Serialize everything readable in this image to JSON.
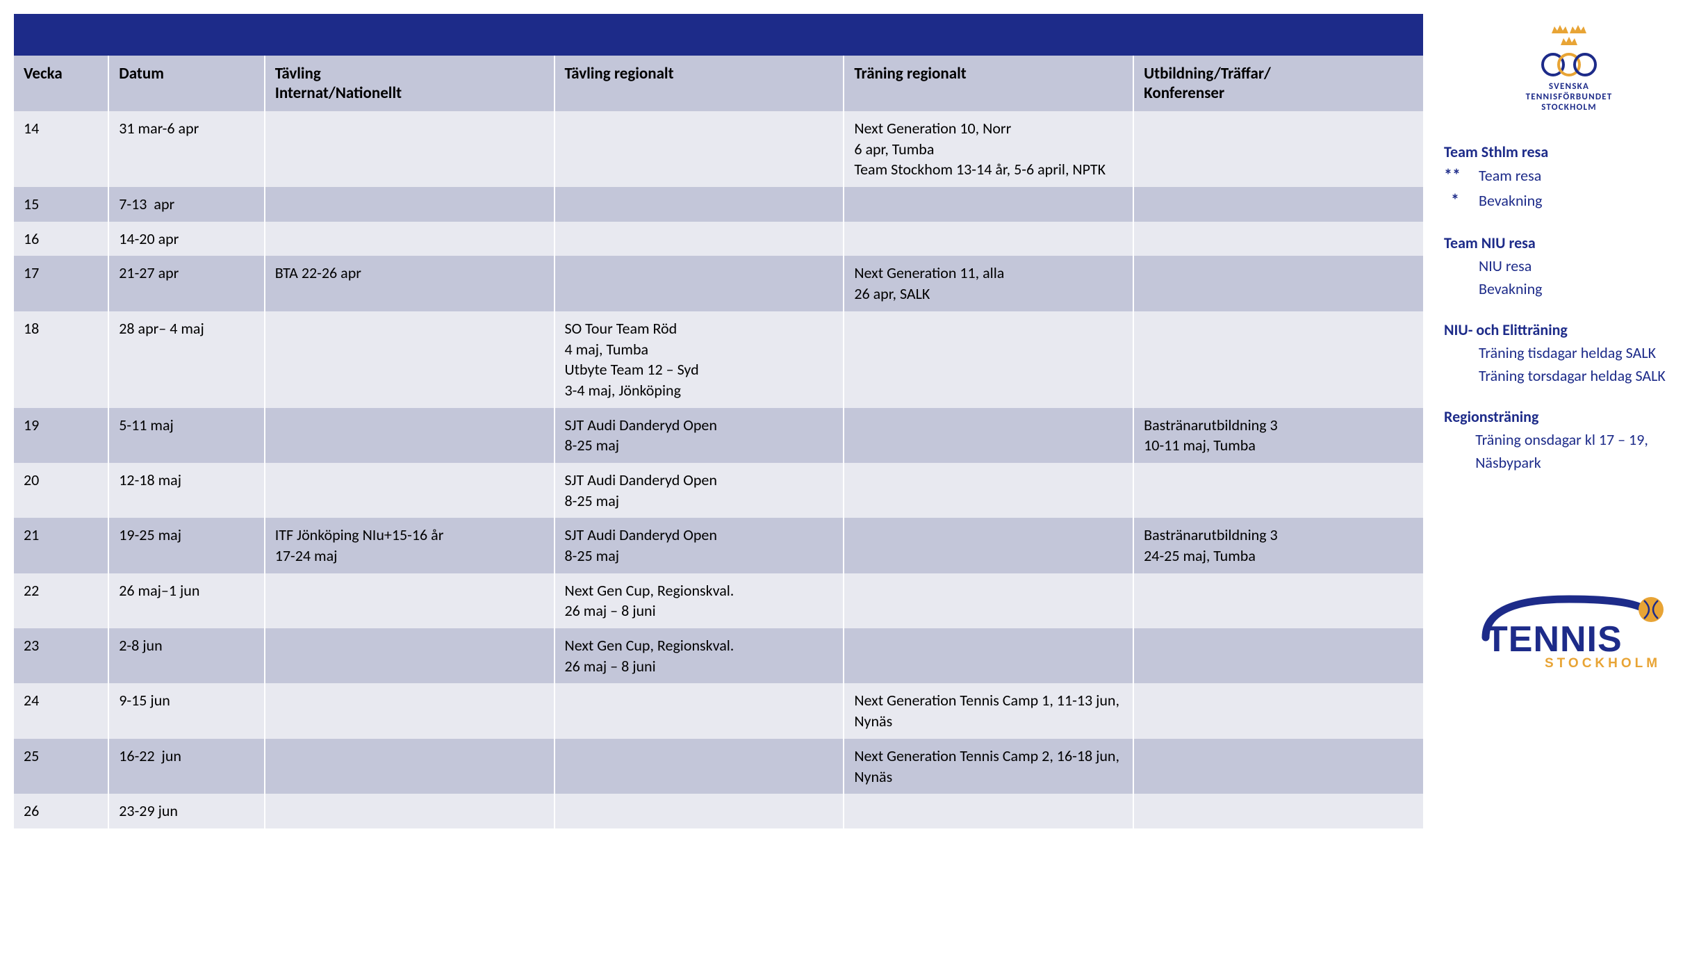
{
  "table": {
    "columns": [
      "Vecka",
      "Datum",
      "Tävling\nInternat/Nationellt",
      "Tävling regionalt",
      "Träning regionalt",
      "Utbildning/Träffar/\nKonferenser"
    ],
    "column_widths": [
      "85px",
      "140px",
      "260px",
      "260px",
      "260px",
      "260px"
    ],
    "header_bg": "#c3c6d9",
    "row_odd_bg": "#e8e9f0",
    "row_even_bg": "#c3c6d9",
    "header_bar_bg": "#1d2b89",
    "rows": [
      {
        "vecka": "14",
        "datum": "31 mar-6 apr",
        "intnat": "",
        "regional": "",
        "training": "Next Generation 10, Norr\n6 apr, Tumba\nTeam Stockhom 13-14 år, 5-6 april, NPTK",
        "utb": ""
      },
      {
        "vecka": "15",
        "datum": "7-13  apr",
        "intnat": "",
        "regional": "",
        "training": "",
        "utb": ""
      },
      {
        "vecka": "16",
        "datum": "14-20 apr",
        "intnat": "",
        "regional": "",
        "training": "",
        "utb": ""
      },
      {
        "vecka": "17",
        "datum": "21-27 apr",
        "intnat": "BTA 22-26 apr",
        "regional": "",
        "training": "Next Generation 11, alla\n26 apr, SALK",
        "utb": ""
      },
      {
        "vecka": "18",
        "datum": "28 apr– 4 maj",
        "intnat": "",
        "regional": "SO Tour Team Röd\n4 maj, Tumba\nUtbyte Team 12 – Syd\n3-4 maj, Jönköping",
        "training": "",
        "utb": ""
      },
      {
        "vecka": "19",
        "datum": "5-11 maj",
        "intnat": "",
        "regional": "SJT Audi Danderyd Open\n8-25 maj",
        "training": "",
        "utb": "Bastränarutbildning 3\n10-11 maj, Tumba"
      },
      {
        "vecka": "20",
        "datum": "12-18 maj",
        "intnat": "",
        "regional": "SJT Audi Danderyd Open\n8-25 maj",
        "training": "",
        "utb": ""
      },
      {
        "vecka": "21",
        "datum": "19-25 maj",
        "intnat": "ITF Jönköping NIu+15-16 år\n17-24 maj",
        "regional": "SJT Audi Danderyd Open\n8-25 maj",
        "training": "",
        "utb": "Bastränarutbildning 3\n24-25 maj, Tumba"
      },
      {
        "vecka": "22",
        "datum": "26 maj–1 jun",
        "intnat": "",
        "regional": "Next Gen Cup, Regionskval.\n26 maj – 8 juni",
        "training": "",
        "utb": ""
      },
      {
        "vecka": "23",
        "datum": "2-8 jun",
        "intnat": "",
        "regional": "Next Gen Cup, Regionskval.\n26 maj – 8 juni",
        "training": "",
        "utb": ""
      },
      {
        "vecka": "24",
        "datum": "9-15 jun",
        "intnat": "",
        "regional": "",
        "training": "Next Generation Tennis Camp 1, 11-13 jun, Nynäs",
        "utb": ""
      },
      {
        "vecka": "25",
        "datum": "16-22  jun",
        "intnat": "",
        "regional": "",
        "training": "Next Generation Tennis Camp 2, 16-18 jun, Nynäs",
        "utb": ""
      },
      {
        "vecka": "26",
        "datum": "23-29 jun",
        "intnat": "",
        "regional": "",
        "training": "",
        "utb": ""
      }
    ]
  },
  "sidebar": {
    "logo_top": {
      "line1": "SVENSKA",
      "line2": "TENNISFÖRBUNDET",
      "line3": "STOCKHOLM",
      "crown_color": "#e8a435",
      "ring_color": "#1d2b89",
      "text_color": "#1d2b89"
    },
    "legend": [
      {
        "title": "Team Sthlm resa",
        "items": [
          {
            "mark": "**",
            "label": "Team resa"
          },
          {
            "mark": "*",
            "label": "Bevakning"
          }
        ]
      },
      {
        "title": "Team NIU resa",
        "items": [
          {
            "mark": "",
            "label": "NIU resa"
          },
          {
            "mark": "",
            "label": "Bevakning"
          }
        ]
      },
      {
        "title": "NIU- och Elitträning",
        "items": [
          {
            "mark": "",
            "label": "Träning tisdagar heldag SALK"
          },
          {
            "mark": "",
            "label": "Träning torsdagar heldag SALK"
          }
        ]
      },
      {
        "title": "Regionsträning",
        "items": [
          {
            "mark": "",
            "label": "Träning onsdagar kl 17 – 19, Näsbypark"
          }
        ]
      }
    ],
    "legend_color": "#1d2b89",
    "logo_bottom": {
      "text": "TENNIS",
      "subtext": "STOCKHOLM",
      "text_color": "#1d2b89",
      "subtext_color": "#e8a435",
      "swoosh_color": "#1d2b89",
      "ball_color": "#e8a435"
    }
  }
}
